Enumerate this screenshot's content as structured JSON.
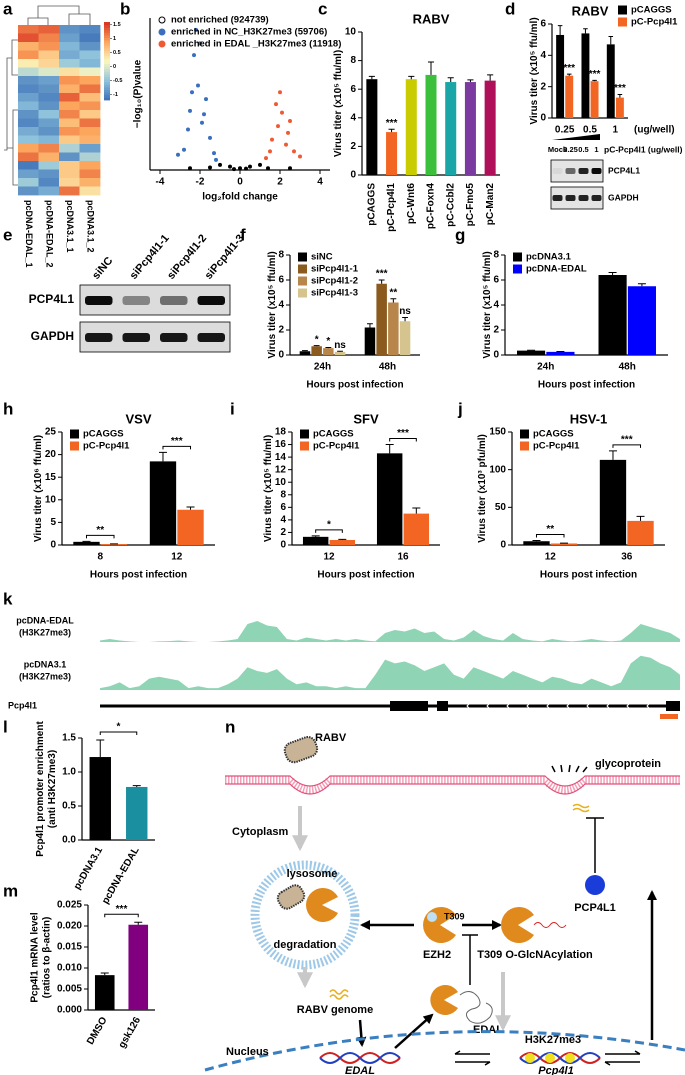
{
  "panel_labels": [
    "a",
    "b",
    "c",
    "d",
    "e",
    "f",
    "g",
    "h",
    "i",
    "j",
    "k",
    "l",
    "m",
    "n"
  ],
  "chart_data": [
    {
      "type": "heatmap",
      "columns": [
        "pcDNA-EDAL_1",
        "pcDNA-EDAL_2",
        "pcDNA3.1_1",
        "pcDNA3.1_2"
      ],
      "values": [
        [
          1.2,
          1.3,
          -0.9,
          -1.0
        ],
        [
          1.4,
          1.1,
          -0.8,
          -1.1
        ],
        [
          0.8,
          1.0,
          -0.6,
          -0.9
        ],
        [
          1.0,
          0.6,
          -0.7,
          -0.5
        ],
        [
          0.3,
          0.5,
          -0.4,
          -0.6
        ],
        [
          -0.2,
          0.0,
          0.4,
          0.1
        ],
        [
          -0.9,
          -0.8,
          1.0,
          0.9
        ],
        [
          -1.0,
          -0.9,
          0.8,
          1.2
        ],
        [
          -0.8,
          -1.0,
          1.3,
          0.7
        ],
        [
          -0.6,
          -0.9,
          0.9,
          1.0
        ],
        [
          -0.9,
          -0.5,
          1.1,
          0.6
        ],
        [
          -1.0,
          -0.8,
          0.7,
          1.2
        ],
        [
          -0.7,
          -0.9,
          1.0,
          0.9
        ],
        [
          -0.5,
          -0.6,
          0.6,
          0.8
        ],
        [
          0.9,
          1.1,
          -0.3,
          -0.8
        ],
        [
          1.2,
          0.8,
          -0.9,
          -0.3
        ],
        [
          -1.1,
          -0.4,
          0.6,
          0.9
        ],
        [
          -0.8,
          -0.9,
          0.6,
          1.1
        ],
        [
          -0.4,
          -1.0,
          0.5,
          0.8
        ],
        [
          -0.9,
          -0.7,
          1.2,
          0.4
        ]
      ],
      "zlim": [
        -1.2,
        1.6
      ],
      "colorbar_ticks": [
        1.5,
        1,
        0.5,
        0,
        -0.5,
        -1
      ]
    },
    {
      "type": "scatter",
      "x_label": "log₂fold change",
      "y_label": "−log₁₀(P)value",
      "xlim": [
        -4.5,
        4.5
      ],
      "xticks": [
        -4,
        -2,
        0,
        2,
        4
      ],
      "ylim": [
        0,
        9
      ],
      "legend": "upper left",
      "series": [
        {
          "name": "not enriched (924739)",
          "color": "#000000",
          "x": [
            -1.0,
            -0.5,
            0,
            0.5,
            1.0,
            -1.5,
            1.4,
            -0.3,
            0.3,
            -2.5,
            2.5
          ],
          "values": [
            0.3,
            0.2,
            0.1,
            0.2,
            0.3,
            0.15,
            0.1,
            0.05,
            0.08,
            0.1,
            0.1
          ]
        },
        {
          "name": "enriched in NC_H3K27me3 (59706)",
          "color": "#3a6fc0",
          "x": [
            -2.8,
            -2.5,
            -2.3,
            -2.1,
            -1.9,
            -1.7,
            -1.5,
            -1.3,
            -2.6,
            -2.0,
            -1.8,
            -2.4,
            -1.2,
            -3.1,
            -2.2
          ],
          "values": [
            1.2,
            3.5,
            6.8,
            5.0,
            2.8,
            4.2,
            1.9,
            1.0,
            2.4,
            7.5,
            3.3,
            4.6,
            0.6,
            0.9,
            8.3
          ]
        },
        {
          "name": "enriched in   EDAL _H3K27me3 (11918)",
          "color": "#f05a32",
          "x": [
            1.3,
            1.6,
            1.9,
            2.1,
            2.3,
            2.5,
            1.8,
            2.7,
            2.0,
            2.4,
            3.0,
            1.5
          ],
          "values": [
            0.7,
            1.8,
            2.6,
            3.4,
            1.5,
            2.9,
            3.9,
            1.1,
            4.6,
            2.2,
            0.8,
            1.1
          ]
        }
      ]
    },
    {
      "type": "bar",
      "title": "RABV",
      "y_label": "Virus titer (x10⁵ ffu/ml)",
      "categories": [
        "pCAGGS",
        "pC-Pcp4l1",
        "pC-Wnt6",
        "pC-Foxn4",
        "pC-Ccbl2",
        "pC-Fmo5",
        "pC-Man2"
      ],
      "values": [
        6.7,
        3.0,
        6.7,
        7.0,
        6.5,
        6.5,
        6.6
      ],
      "errors": [
        0.2,
        0.2,
        0.2,
        0.9,
        0.3,
        0.15,
        0.4
      ],
      "colors": [
        "#000000",
        "#f26522",
        "#c8cc00",
        "#3cc03c",
        "#1aa6a6",
        "#7a3aa0",
        "#b0105a"
      ],
      "significance": [
        null,
        "***",
        null,
        null,
        null,
        null,
        null
      ],
      "ylim": [
        0,
        10
      ],
      "yticks": [
        0,
        2,
        4,
        6,
        8,
        10
      ]
    },
    {
      "type": "bar",
      "title": "RABV",
      "y_label": "Virus titer (x10⁵ ffu/ml)",
      "x_label": "(ug/well)",
      "categories": [
        "0.25",
        "0.5",
        "1"
      ],
      "series": [
        {
          "name": "pCAGGS",
          "color": "#000000",
          "values": [
            5.3,
            5.4,
            4.7
          ],
          "errors": [
            0.6,
            0.3,
            0.5
          ]
        },
        {
          "name": "pC-Pcp4l1",
          "color": "#f26522",
          "values": [
            2.7,
            2.35,
            1.3
          ],
          "errors": [
            0.1,
            0.05,
            0.2
          ],
          "significance": [
            "***",
            "***",
            "***"
          ]
        }
      ],
      "ylim": [
        0,
        6
      ],
      "yticks": [
        0,
        2,
        4,
        6
      ],
      "legend": "upper right"
    },
    {
      "type": "bar",
      "y_label": "Virus titer (x10⁵ ffu/ml)",
      "x_label": "Hours post infection",
      "categories": [
        "24h",
        "48h"
      ],
      "series": [
        {
          "name": "siNC",
          "color": "#000000",
          "values": [
            0.3,
            2.2
          ],
          "errors": [
            0.05,
            0.3
          ]
        },
        {
          "name": "siPcp4l1-1",
          "color": "#8b5a1e",
          "values": [
            0.7,
            5.7
          ],
          "errors": [
            0.05,
            0.3
          ],
          "significance": [
            "*",
            "***"
          ]
        },
        {
          "name": "siPcp4l1-2",
          "color": "#b8864a",
          "values": [
            0.55,
            4.2
          ],
          "errors": [
            0.05,
            0.3
          ],
          "significance": [
            "*",
            "**"
          ]
        },
        {
          "name": "siPcp4l1-3",
          "color": "#d6c48e",
          "values": [
            0.25,
            2.7
          ],
          "errors": [
            0.05,
            0.3
          ],
          "significance": [
            "ns",
            "ns"
          ]
        }
      ],
      "ylim": [
        0,
        8
      ],
      "yticks": [
        0,
        2,
        4,
        6,
        8
      ],
      "legend": "upper left"
    },
    {
      "type": "bar",
      "y_label": "Virus titer (x10⁵ ffu/ml)",
      "x_label": "Hours post infection",
      "categories": [
        "24h",
        "48h"
      ],
      "series": [
        {
          "name": "pcDNA3.1",
          "color": "#000000",
          "values": [
            0.35,
            6.4
          ],
          "errors": [
            0.03,
            0.2
          ]
        },
        {
          "name": "pcDNA-EDAL",
          "color": "#0000ff",
          "values": [
            0.25,
            5.5
          ],
          "errors": [
            0.03,
            0.2
          ]
        }
      ],
      "ylim": [
        0,
        8
      ],
      "yticks": [
        0,
        2,
        4,
        6,
        8
      ],
      "legend": "upper left"
    },
    {
      "type": "bar",
      "title": "VSV",
      "y_label": "Virus titer (x10⁶ ffu/ml)",
      "x_label": "Hours post infection",
      "categories": [
        "8",
        "12"
      ],
      "series": [
        {
          "name": "pCAGGS",
          "color": "#000000",
          "values": [
            0.7,
            18.5
          ],
          "errors": [
            0.1,
            2.0
          ]
        },
        {
          "name": "pC-Pcp4l1",
          "color": "#f26522",
          "values": [
            0.2,
            7.8
          ],
          "errors": [
            0.05,
            0.6
          ]
        }
      ],
      "significance": [
        "**",
        "***"
      ],
      "ylim": [
        0,
        25
      ],
      "yticks": [
        0,
        5,
        10,
        15,
        20,
        25
      ],
      "legend": "upper left"
    },
    {
      "type": "bar",
      "title": "SFV",
      "y_label": "Virus titer (x10⁵ ffu/ml)",
      "x_label": "Hours post infection",
      "categories": [
        "12",
        "16"
      ],
      "series": [
        {
          "name": "pCAGGS",
          "color": "#000000",
          "values": [
            1.3,
            14.6
          ],
          "errors": [
            0.15,
            1.4
          ]
        },
        {
          "name": "pC-Pcp4l1",
          "color": "#f26522",
          "values": [
            0.8,
            5.0
          ],
          "errors": [
            0.1,
            0.9
          ]
        }
      ],
      "significance": [
        "*",
        "***"
      ],
      "ylim": [
        0,
        18
      ],
      "yticks": [
        0,
        2,
        4,
        6,
        8,
        10,
        12,
        14,
        16,
        18
      ],
      "legend": "upper left"
    },
    {
      "type": "bar",
      "title": "HSV-1",
      "y_label": "Virus titer (x10³ pfu/ml)",
      "x_label": "Hours post infection",
      "categories": [
        "12",
        "36"
      ],
      "series": [
        {
          "name": "pCAGGS",
          "color": "#000000",
          "values": [
            5,
            113
          ],
          "errors": [
            1,
            12
          ]
        },
        {
          "name": "pC-Pcp4l1",
          "color": "#f26522",
          "values": [
            2,
            32
          ],
          "errors": [
            0.5,
            6
          ]
        }
      ],
      "significance": [
        "**",
        "***"
      ],
      "ylim": [
        0,
        150
      ],
      "yticks": [
        0,
        50,
        100,
        150
      ],
      "legend": "upper left"
    },
    {
      "type": "area",
      "gene": "Pcp4l1",
      "color": "#8fd4b5",
      "ylim": [
        0,
        1
      ],
      "series": [
        {
          "label_lines": [
            "pcDNA-EDAL",
            "(H3K27me3)"
          ],
          "values": [
            0.05,
            0.1,
            0.05,
            0.02,
            0,
            0,
            0.02,
            0.03,
            0.05,
            0.02,
            0,
            0,
            0.02,
            0.05,
            0.1,
            0.6,
            0.7,
            0.55,
            0.5,
            0.1,
            0.05,
            0.15,
            0.1,
            0.05,
            0.1,
            0.05,
            0.1,
            0.05,
            0.02,
            0.3,
            0.4,
            0.35,
            0.45,
            0.3,
            0.35,
            0.1,
            0.05,
            0.15,
            0.4,
            0.2,
            0.1,
            0.05,
            0.3,
            0.1,
            0.05,
            0.02,
            0.1,
            0.05,
            0.02,
            0.05,
            0.1,
            0.05,
            0.02,
            0.05,
            0.3,
            0.6,
            0.5,
            0.4,
            0.3,
            0.1
          ]
        },
        {
          "label_lines": [
            "pcDNA3.1",
            "(H3K27me3)"
          ],
          "values": [
            0.05,
            0.1,
            0.2,
            0.05,
            0.1,
            0.3,
            0.35,
            0.3,
            0.25,
            0.05,
            0.1,
            0.05,
            0.05,
            0.15,
            0.3,
            0.6,
            0.5,
            0.45,
            0.55,
            0.3,
            0.15,
            0.2,
            0.1,
            0.1,
            0.05,
            0.1,
            0.05,
            0.05,
            0.4,
            0.8,
            0.7,
            0.75,
            0.65,
            0.5,
            0.6,
            0.7,
            0.4,
            0.3,
            0.6,
            0.5,
            0.4,
            0.3,
            0.5,
            0.4,
            0.3,
            0.2,
            0.35,
            0.3,
            0.2,
            0.15,
            0.3,
            0.2,
            0.1,
            0.2,
            0.7,
            0.9,
            0.85,
            0.7,
            0.6,
            0.4
          ]
        }
      ]
    },
    {
      "type": "bar",
      "y_label": [
        "Pcp4l1 promoter enrichment",
        "(anti H3K27me3)"
      ],
      "categories": [
        "pcDNA3.1",
        "pcDNA-EDAL"
      ],
      "values": [
        1.22,
        0.78
      ],
      "errors": [
        0.25,
        0.02
      ],
      "colors": [
        "#000000",
        "#1a8fa0"
      ],
      "significance": "*",
      "ylim": [
        0,
        1.5
      ],
      "yticks": [
        {
          "value": 0,
          "label": "0.0"
        },
        0.5,
        {
          "value": 1,
          "label": "1.0"
        },
        1.5
      ]
    },
    {
      "type": "bar",
      "y_label": [
        "Pcp4l1 mRNA level",
        "(ratios to β-actin)"
      ],
      "categories": [
        "DMSO",
        "gsk126"
      ],
      "values": [
        0.0083,
        0.0203
      ],
      "errors": [
        0.0005,
        0.0006
      ],
      "colors": [
        "#000000",
        "#800080"
      ],
      "significance": "***",
      "ylim": [
        0,
        0.025
      ],
      "yticks": [
        {
          "value": 0,
          "label": "0.000"
        },
        {
          "value": 0.005,
          "label": "0.005"
        },
        {
          "value": 0.01,
          "label": "0.010"
        },
        {
          "value": 0.015,
          "label": "0.015"
        },
        {
          "value": 0.02,
          "label": "0.020"
        },
        {
          "value": 0.025,
          "label": "0.025"
        }
      ]
    }
  ],
  "blot_d": {
    "lanes": [
      "Mock",
      "0.25",
      "0.5",
      "1"
    ],
    "treatment": "pC-Pcp4l1 (ug/well)",
    "rows": [
      "PCP4L1",
      "GAPDH"
    ]
  },
  "blot_e": {
    "lanes": [
      "siNC",
      "siPcp4l1-1",
      "siPcp4l1-2",
      "siPcp4l1-3"
    ],
    "rows": [
      "PCP4L1",
      "GAPDH"
    ]
  },
  "diagram": {
    "virus": "RABV",
    "glycoprotein": "glycoprotein",
    "cytoplasm": "Cytoplasm",
    "lysosome": "lysosome",
    "degradation": "degradation",
    "ezh2": "EZH2",
    "site": "T309",
    "modification": "T309 O-GlcNAcylation",
    "pcp4l1_protein": "PCP4L1",
    "edal_lnc": "EDAL",
    "genome": "RABV genome",
    "nucleus": "Nucleus",
    "edal_gene": "EDAL",
    "mark": "H3K27me3",
    "pcp4l1_gene": "Pcp4l1"
  }
}
